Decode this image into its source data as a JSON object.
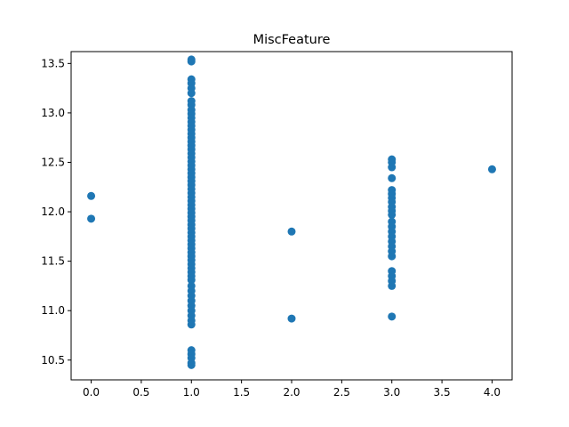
{
  "chart_data": {
    "type": "scatter",
    "title": "MiscFeature",
    "xlabel": "",
    "ylabel": "",
    "xlim": [
      -0.2,
      4.2
    ],
    "ylim": [
      10.3,
      13.62
    ],
    "x_ticks": [
      0.0,
      0.5,
      1.0,
      1.5,
      2.0,
      2.5,
      3.0,
      3.5,
      4.0
    ],
    "x_tick_labels": [
      "0.0",
      "0.5",
      "1.0",
      "1.5",
      "2.0",
      "2.5",
      "3.0",
      "3.5",
      "4.0"
    ],
    "y_ticks": [
      10.5,
      11.0,
      11.5,
      12.0,
      12.5,
      13.0,
      13.5
    ],
    "y_tick_labels": [
      "10.5",
      "11.0",
      "11.5",
      "12.0",
      "12.5",
      "13.0",
      "13.5"
    ],
    "grid": false,
    "point_color": "#1f77b4",
    "points": [
      {
        "x": 0,
        "y": 12.16
      },
      {
        "x": 0,
        "y": 11.93
      },
      {
        "x": 1,
        "y": 13.54
      },
      {
        "x": 1,
        "y": 13.52
      },
      {
        "x": 1,
        "y": 13.34
      },
      {
        "x": 1,
        "y": 13.3
      },
      {
        "x": 1,
        "y": 13.25
      },
      {
        "x": 1,
        "y": 13.2
      },
      {
        "x": 1,
        "y": 13.12
      },
      {
        "x": 1,
        "y": 13.08
      },
      {
        "x": 1,
        "y": 13.03
      },
      {
        "x": 1,
        "y": 12.99
      },
      {
        "x": 1,
        "y": 12.95
      },
      {
        "x": 1,
        "y": 12.91
      },
      {
        "x": 1,
        "y": 12.87
      },
      {
        "x": 1,
        "y": 12.83
      },
      {
        "x": 1,
        "y": 12.79
      },
      {
        "x": 1,
        "y": 12.75
      },
      {
        "x": 1,
        "y": 12.71
      },
      {
        "x": 1,
        "y": 12.67
      },
      {
        "x": 1,
        "y": 12.63
      },
      {
        "x": 1,
        "y": 12.59
      },
      {
        "x": 1,
        "y": 12.55
      },
      {
        "x": 1,
        "y": 12.51
      },
      {
        "x": 1,
        "y": 12.47
      },
      {
        "x": 1,
        "y": 12.43
      },
      {
        "x": 1,
        "y": 12.39
      },
      {
        "x": 1,
        "y": 12.35
      },
      {
        "x": 1,
        "y": 12.31
      },
      {
        "x": 1,
        "y": 12.27
      },
      {
        "x": 1,
        "y": 12.23
      },
      {
        "x": 1,
        "y": 12.19
      },
      {
        "x": 1,
        "y": 12.15
      },
      {
        "x": 1,
        "y": 12.11
      },
      {
        "x": 1,
        "y": 12.07
      },
      {
        "x": 1,
        "y": 12.03
      },
      {
        "x": 1,
        "y": 11.99
      },
      {
        "x": 1,
        "y": 11.95
      },
      {
        "x": 1,
        "y": 11.91
      },
      {
        "x": 1,
        "y": 11.87
      },
      {
        "x": 1,
        "y": 11.83
      },
      {
        "x": 1,
        "y": 11.79
      },
      {
        "x": 1,
        "y": 11.75
      },
      {
        "x": 1,
        "y": 11.71
      },
      {
        "x": 1,
        "y": 11.67
      },
      {
        "x": 1,
        "y": 11.63
      },
      {
        "x": 1,
        "y": 11.59
      },
      {
        "x": 1,
        "y": 11.55
      },
      {
        "x": 1,
        "y": 11.51
      },
      {
        "x": 1,
        "y": 11.47
      },
      {
        "x": 1,
        "y": 11.43
      },
      {
        "x": 1,
        "y": 11.39
      },
      {
        "x": 1,
        "y": 11.35
      },
      {
        "x": 1,
        "y": 11.31
      },
      {
        "x": 1,
        "y": 11.25
      },
      {
        "x": 1,
        "y": 11.2
      },
      {
        "x": 1,
        "y": 11.15
      },
      {
        "x": 1,
        "y": 11.1
      },
      {
        "x": 1,
        "y": 11.05
      },
      {
        "x": 1,
        "y": 11.0
      },
      {
        "x": 1,
        "y": 10.95
      },
      {
        "x": 1,
        "y": 10.9
      },
      {
        "x": 1,
        "y": 10.86
      },
      {
        "x": 1,
        "y": 10.6
      },
      {
        "x": 1,
        "y": 10.56
      },
      {
        "x": 1,
        "y": 10.52
      },
      {
        "x": 1,
        "y": 10.47
      },
      {
        "x": 1,
        "y": 10.45
      },
      {
        "x": 2,
        "y": 11.8
      },
      {
        "x": 2,
        "y": 10.92
      },
      {
        "x": 3,
        "y": 12.53
      },
      {
        "x": 3,
        "y": 12.5
      },
      {
        "x": 3,
        "y": 12.45
      },
      {
        "x": 3,
        "y": 12.34
      },
      {
        "x": 3,
        "y": 12.22
      },
      {
        "x": 3,
        "y": 12.18
      },
      {
        "x": 3,
        "y": 12.14
      },
      {
        "x": 3,
        "y": 12.1
      },
      {
        "x": 3,
        "y": 12.05
      },
      {
        "x": 3,
        "y": 12.01
      },
      {
        "x": 3,
        "y": 11.97
      },
      {
        "x": 3,
        "y": 11.9
      },
      {
        "x": 3,
        "y": 11.85
      },
      {
        "x": 3,
        "y": 11.8
      },
      {
        "x": 3,
        "y": 11.75
      },
      {
        "x": 3,
        "y": 11.7
      },
      {
        "x": 3,
        "y": 11.65
      },
      {
        "x": 3,
        "y": 11.6
      },
      {
        "x": 3,
        "y": 11.55
      },
      {
        "x": 3,
        "y": 11.4
      },
      {
        "x": 3,
        "y": 11.35
      },
      {
        "x": 3,
        "y": 11.3
      },
      {
        "x": 3,
        "y": 11.25
      },
      {
        "x": 3,
        "y": 10.94
      },
      {
        "x": 4,
        "y": 12.43
      }
    ]
  }
}
